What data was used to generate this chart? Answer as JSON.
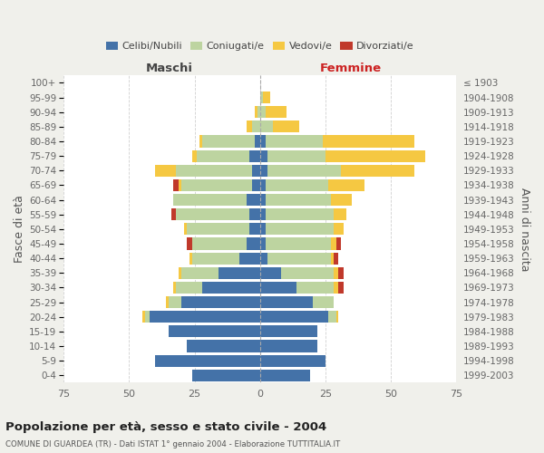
{
  "age_groups": [
    "0-4",
    "5-9",
    "10-14",
    "15-19",
    "20-24",
    "25-29",
    "30-34",
    "35-39",
    "40-44",
    "45-49",
    "50-54",
    "55-59",
    "60-64",
    "65-69",
    "70-74",
    "75-79",
    "80-84",
    "85-89",
    "90-94",
    "95-99",
    "100+"
  ],
  "birth_years": [
    "1999-2003",
    "1994-1998",
    "1989-1993",
    "1984-1988",
    "1979-1983",
    "1974-1978",
    "1969-1973",
    "1964-1968",
    "1959-1963",
    "1954-1958",
    "1949-1953",
    "1944-1948",
    "1939-1943",
    "1934-1938",
    "1929-1933",
    "1924-1928",
    "1919-1923",
    "1914-1918",
    "1909-1913",
    "1904-1908",
    "≤ 1903"
  ],
  "maschi": {
    "celibi": [
      26,
      40,
      28,
      35,
      42,
      30,
      22,
      16,
      8,
      5,
      4,
      4,
      5,
      3,
      3,
      4,
      2,
      0,
      0,
      0,
      0
    ],
    "coniugati": [
      0,
      0,
      0,
      0,
      2,
      5,
      10,
      14,
      18,
      21,
      24,
      28,
      28,
      27,
      29,
      20,
      20,
      3,
      1,
      0,
      0
    ],
    "vedovi": [
      0,
      0,
      0,
      0,
      1,
      1,
      1,
      1,
      1,
      0,
      1,
      0,
      0,
      1,
      8,
      2,
      1,
      2,
      1,
      0,
      0
    ],
    "divorziati": [
      0,
      0,
      0,
      0,
      0,
      0,
      0,
      0,
      0,
      2,
      0,
      2,
      0,
      2,
      0,
      0,
      0,
      0,
      0,
      0,
      0
    ]
  },
  "femmine": {
    "nubili": [
      19,
      25,
      22,
      22,
      26,
      20,
      14,
      8,
      3,
      2,
      2,
      2,
      2,
      2,
      3,
      3,
      2,
      0,
      0,
      0,
      0
    ],
    "coniugate": [
      0,
      0,
      0,
      0,
      3,
      8,
      14,
      20,
      24,
      25,
      26,
      26,
      25,
      24,
      28,
      22,
      22,
      5,
      2,
      1,
      0
    ],
    "vedove": [
      0,
      0,
      0,
      0,
      1,
      0,
      2,
      2,
      1,
      2,
      4,
      5,
      8,
      14,
      28,
      38,
      35,
      10,
      8,
      3,
      0
    ],
    "divorziate": [
      0,
      0,
      0,
      0,
      0,
      0,
      2,
      2,
      2,
      2,
      0,
      0,
      0,
      0,
      0,
      0,
      0,
      0,
      0,
      0,
      0
    ]
  },
  "colors": {
    "celibi": "#4472a8",
    "coniugati": "#bdd4a0",
    "vedovi": "#f5c842",
    "divorziati": "#c0392b"
  },
  "xlim": 75,
  "title": "Popolazione per età, sesso e stato civile - 2004",
  "subtitle": "COMUNE DI GUARDEA (TR) - Dati ISTAT 1° gennaio 2004 - Elaborazione TUTTITALIA.IT",
  "ylabel_left": "Fasce di età",
  "ylabel_right": "Anni di nascita",
  "label_maschi": "Maschi",
  "label_femmine": "Femmine",
  "bg_color": "#f0f0eb",
  "plot_bg_color": "#ffffff",
  "legend_labels": [
    "Celibi/Nubili",
    "Coniugati/e",
    "Vedovi/e",
    "Divorziati/e"
  ],
  "xticks": [
    -75,
    -50,
    -25,
    0,
    25,
    50,
    75
  ]
}
